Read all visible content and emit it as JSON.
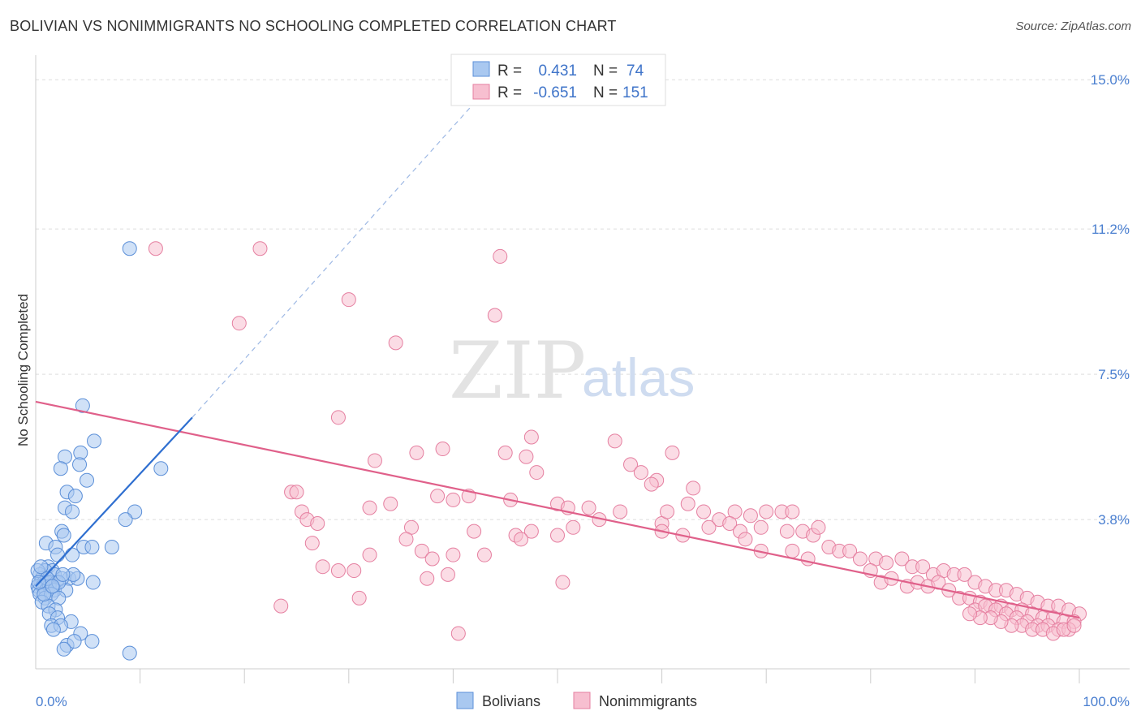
{
  "title": "BOLIVIAN VS NONIMMIGRANTS NO SCHOOLING COMPLETED CORRELATION CHART",
  "source": "Source: ZipAtlas.com",
  "watermark": {
    "zip": "ZIP",
    "atlas": "atlas"
  },
  "colors": {
    "blue_fill": "#a9c8f0",
    "blue_stroke": "#5b8fd8",
    "blue_line": "#2f6fd0",
    "pink_fill": "#f7bfd0",
    "pink_stroke": "#e57fa0",
    "pink_line": "#e0608a",
    "grid": "#dddddd",
    "tick_text": "#4a7fd0"
  },
  "legend": {
    "rows": [
      {
        "r_label": "R =",
        "r_value": "0.431",
        "n_label": "N =",
        "n_value": "74"
      },
      {
        "r_label": "R =",
        "r_value": "-0.651",
        "n_label": "N =",
        "n_value": "151"
      }
    ]
  },
  "bottom_legend": {
    "series1": "Bolivians",
    "series2": "Nonimmigrants"
  },
  "chart_data": {
    "type": "scatter",
    "ylabel": "No Schooling Completed",
    "xlim": [
      0,
      100
    ],
    "ylim": [
      0,
      15.5
    ],
    "x_tick_labels": [
      "0.0%",
      "100.0%"
    ],
    "y_ticks": [
      3.8,
      7.5,
      11.2,
      15.0
    ],
    "y_tick_labels": [
      "3.8%",
      "7.5%",
      "11.2%",
      "15.0%"
    ],
    "grid": true,
    "legend_position": "top-center",
    "series": [
      {
        "name": "Bolivians",
        "color": "#a9c8f0",
        "trend": {
          "x0": 0.0,
          "y0": 2.1,
          "x1": 15.0,
          "y1": 6.4,
          "dashed_to_x": 42.0,
          "dashed_to_y": 14.4
        },
        "points": [
          [
            9.0,
            10.7
          ],
          [
            4.5,
            6.7
          ],
          [
            5.6,
            5.8
          ],
          [
            4.3,
            5.5
          ],
          [
            2.8,
            5.4
          ],
          [
            4.2,
            5.2
          ],
          [
            2.4,
            5.1
          ],
          [
            12.0,
            5.1
          ],
          [
            4.9,
            4.8
          ],
          [
            3.0,
            4.5
          ],
          [
            3.8,
            4.4
          ],
          [
            2.8,
            4.1
          ],
          [
            3.5,
            4.0
          ],
          [
            9.5,
            4.0
          ],
          [
            8.6,
            3.8
          ],
          [
            2.5,
            3.5
          ],
          [
            2.7,
            3.4
          ],
          [
            1.0,
            3.2
          ],
          [
            1.9,
            3.1
          ],
          [
            4.6,
            3.1
          ],
          [
            5.4,
            3.1
          ],
          [
            7.3,
            3.1
          ],
          [
            2.1,
            2.9
          ],
          [
            3.5,
            2.9
          ],
          [
            1.2,
            2.6
          ],
          [
            1.6,
            2.5
          ],
          [
            0.9,
            2.5
          ],
          [
            1.8,
            2.4
          ],
          [
            3.2,
            2.3
          ],
          [
            4.0,
            2.3
          ],
          [
            0.4,
            2.4
          ],
          [
            0.5,
            2.2
          ],
          [
            0.6,
            2.3
          ],
          [
            0.8,
            2.2
          ],
          [
            1.1,
            2.2
          ],
          [
            1.4,
            2.2
          ],
          [
            2.0,
            2.2
          ],
          [
            2.5,
            2.3
          ],
          [
            3.6,
            2.4
          ],
          [
            5.5,
            2.2
          ],
          [
            0.2,
            2.1
          ],
          [
            0.3,
            2.0
          ],
          [
            0.7,
            2.1
          ],
          [
            1.0,
            2.0
          ],
          [
            1.3,
            2.1
          ],
          [
            1.8,
            2.0
          ],
          [
            2.9,
            2.0
          ],
          [
            0.4,
            1.9
          ],
          [
            0.9,
            1.8
          ],
          [
            1.5,
            1.9
          ],
          [
            2.2,
            1.8
          ],
          [
            0.6,
            1.7
          ],
          [
            1.2,
            1.6
          ],
          [
            1.9,
            1.5
          ],
          [
            1.3,
            1.4
          ],
          [
            2.1,
            1.3
          ],
          [
            3.4,
            1.2
          ],
          [
            1.5,
            1.1
          ],
          [
            2.4,
            1.1
          ],
          [
            1.7,
            1.0
          ],
          [
            4.3,
            0.9
          ],
          [
            3.0,
            0.6
          ],
          [
            3.7,
            0.7
          ],
          [
            5.4,
            0.7
          ],
          [
            2.7,
            0.5
          ],
          [
            9.0,
            0.4
          ],
          [
            0.2,
            2.5
          ],
          [
            0.5,
            2.6
          ],
          [
            1.1,
            2.3
          ],
          [
            2.2,
            2.2
          ],
          [
            0.8,
            1.9
          ],
          [
            1.6,
            2.1
          ],
          [
            2.6,
            2.4
          ],
          [
            0.3,
            2.2
          ]
        ]
      },
      {
        "name": "Nonimmigrants",
        "color": "#f7bfd0",
        "trend": {
          "x0": 0.0,
          "y0": 6.8,
          "x1": 100.0,
          "y1": 1.3
        },
        "points": [
          [
            11.5,
            10.7
          ],
          [
            21.5,
            10.7
          ],
          [
            44.5,
            10.5
          ],
          [
            30.0,
            9.4
          ],
          [
            44.0,
            9.0
          ],
          [
            19.5,
            8.8
          ],
          [
            34.5,
            8.3
          ],
          [
            29.0,
            6.4
          ],
          [
            47.5,
            5.9
          ],
          [
            36.5,
            5.5
          ],
          [
            39.0,
            5.6
          ],
          [
            45.0,
            5.5
          ],
          [
            47.0,
            5.4
          ],
          [
            32.5,
            5.3
          ],
          [
            57.0,
            5.2
          ],
          [
            58.0,
            5.0
          ],
          [
            61.0,
            5.5
          ],
          [
            55.5,
            5.8
          ],
          [
            59.5,
            4.8
          ],
          [
            48.0,
            5.0
          ],
          [
            59.0,
            4.7
          ],
          [
            63.0,
            4.6
          ],
          [
            24.5,
            4.5
          ],
          [
            38.5,
            4.4
          ],
          [
            25.0,
            4.5
          ],
          [
            41.5,
            4.4
          ],
          [
            45.5,
            4.3
          ],
          [
            50.0,
            4.2
          ],
          [
            51.0,
            4.1
          ],
          [
            62.5,
            4.2
          ],
          [
            67.0,
            4.0
          ],
          [
            70.0,
            4.0
          ],
          [
            71.5,
            4.0
          ],
          [
            72.5,
            4.0
          ],
          [
            32.0,
            4.1
          ],
          [
            34.0,
            4.2
          ],
          [
            40.0,
            4.3
          ],
          [
            53.0,
            4.1
          ],
          [
            56.0,
            4.0
          ],
          [
            60.0,
            3.7
          ],
          [
            54.0,
            3.8
          ],
          [
            60.5,
            4.0
          ],
          [
            64.0,
            4.0
          ],
          [
            65.5,
            3.8
          ],
          [
            68.5,
            3.9
          ],
          [
            25.5,
            4.0
          ],
          [
            26.0,
            3.8
          ],
          [
            27.0,
            3.7
          ],
          [
            36.0,
            3.6
          ],
          [
            42.0,
            3.5
          ],
          [
            47.5,
            3.5
          ],
          [
            51.5,
            3.6
          ],
          [
            60.0,
            3.5
          ],
          [
            62.0,
            3.4
          ],
          [
            64.5,
            3.6
          ],
          [
            66.5,
            3.7
          ],
          [
            67.5,
            3.5
          ],
          [
            69.5,
            3.6
          ],
          [
            72.0,
            3.5
          ],
          [
            73.5,
            3.5
          ],
          [
            74.5,
            3.4
          ],
          [
            75.0,
            3.6
          ],
          [
            46.0,
            3.4
          ],
          [
            46.5,
            3.3
          ],
          [
            50.0,
            3.4
          ],
          [
            26.5,
            3.2
          ],
          [
            35.5,
            3.3
          ],
          [
            37.0,
            3.0
          ],
          [
            40.0,
            2.9
          ],
          [
            38.0,
            2.8
          ],
          [
            43.0,
            2.9
          ],
          [
            32.0,
            2.9
          ],
          [
            68.0,
            3.3
          ],
          [
            69.5,
            3.0
          ],
          [
            72.5,
            3.0
          ],
          [
            74.0,
            2.8
          ],
          [
            76.0,
            3.1
          ],
          [
            77.0,
            3.0
          ],
          [
            78.0,
            3.0
          ],
          [
            79.0,
            2.8
          ],
          [
            80.5,
            2.8
          ],
          [
            81.5,
            2.7
          ],
          [
            83.0,
            2.8
          ],
          [
            84.0,
            2.6
          ],
          [
            85.0,
            2.6
          ],
          [
            86.0,
            2.4
          ],
          [
            87.0,
            2.5
          ],
          [
            88.0,
            2.4
          ],
          [
            89.0,
            2.4
          ],
          [
            90.0,
            2.2
          ],
          [
            91.0,
            2.1
          ],
          [
            92.0,
            2.0
          ],
          [
            93.0,
            2.0
          ],
          [
            94.0,
            1.9
          ],
          [
            95.0,
            1.8
          ],
          [
            96.0,
            1.7
          ],
          [
            97.0,
            1.6
          ],
          [
            98.0,
            1.6
          ],
          [
            99.0,
            1.5
          ],
          [
            100.0,
            1.4
          ],
          [
            27.5,
            2.6
          ],
          [
            29.0,
            2.5
          ],
          [
            30.5,
            2.5
          ],
          [
            39.5,
            2.4
          ],
          [
            37.5,
            2.3
          ],
          [
            50.5,
            2.2
          ],
          [
            31.0,
            1.8
          ],
          [
            23.5,
            1.6
          ],
          [
            40.5,
            0.9
          ],
          [
            80.0,
            2.5
          ],
          [
            81.0,
            2.2
          ],
          [
            82.0,
            2.3
          ],
          [
            83.5,
            2.1
          ],
          [
            84.5,
            2.2
          ],
          [
            85.5,
            2.1
          ],
          [
            86.5,
            2.2
          ],
          [
            87.5,
            2.0
          ],
          [
            88.5,
            1.8
          ],
          [
            89.5,
            1.8
          ],
          [
            90.5,
            1.7
          ],
          [
            91.5,
            1.6
          ],
          [
            92.5,
            1.6
          ],
          [
            93.5,
            1.5
          ],
          [
            94.5,
            1.5
          ],
          [
            95.5,
            1.4
          ],
          [
            96.5,
            1.3
          ],
          [
            97.5,
            1.3
          ],
          [
            98.5,
            1.2
          ],
          [
            99.5,
            1.2
          ],
          [
            90.0,
            1.5
          ],
          [
            91.0,
            1.6
          ],
          [
            92.0,
            1.5
          ],
          [
            93.0,
            1.4
          ],
          [
            94.0,
            1.3
          ],
          [
            95.0,
            1.2
          ],
          [
            96.0,
            1.1
          ],
          [
            97.0,
            1.1
          ],
          [
            98.0,
            1.0
          ],
          [
            99.0,
            1.0
          ],
          [
            94.5,
            1.1
          ],
          [
            95.5,
            1.0
          ],
          [
            96.5,
            1.0
          ],
          [
            97.5,
            0.9
          ],
          [
            98.5,
            1.0
          ],
          [
            99.5,
            1.1
          ],
          [
            93.5,
            1.1
          ],
          [
            92.5,
            1.2
          ],
          [
            91.5,
            1.3
          ],
          [
            90.5,
            1.3
          ],
          [
            89.5,
            1.4
          ]
        ]
      }
    ]
  }
}
